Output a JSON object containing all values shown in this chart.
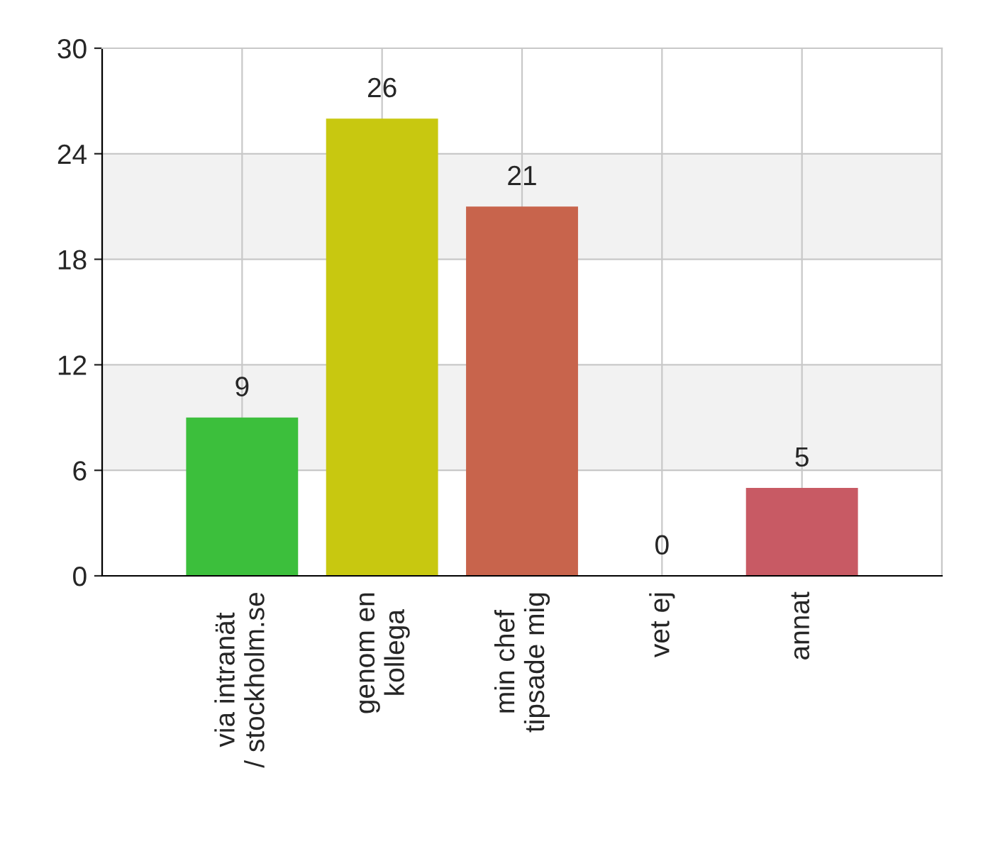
{
  "chart_data": {
    "type": "bar",
    "categories": [
      "via intranät\n/ stockholm.se",
      "genom en\nkollega",
      "min chef\ntipsade mig",
      "vet ej",
      "annat"
    ],
    "values": [
      9,
      26,
      21,
      0,
      5
    ],
    "colors": [
      "#3cbf3c",
      "#c8c810",
      "#c8644c",
      "#000000",
      "#c85a64"
    ],
    "ylim": [
      0,
      30
    ],
    "yticks": [
      0,
      6,
      12,
      18,
      24,
      30
    ],
    "bands": [
      {
        "axis": "y",
        "from": 6,
        "to": 12,
        "color": "#f2f2f2"
      },
      {
        "axis": "y",
        "from": 18,
        "to": 24,
        "color": "#f2f2f2"
      }
    ],
    "grid": true,
    "data_labels": true
  }
}
